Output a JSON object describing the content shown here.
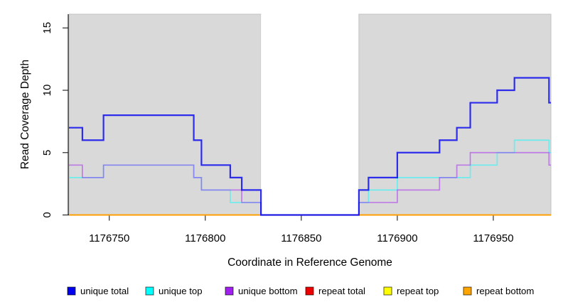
{
  "figure": {
    "background_color": "#ffffff",
    "covered_region_color": "#d9d9d9",
    "gap_region_color": "#ffffff"
  },
  "chart_data": {
    "type": "line",
    "style": "step-after",
    "title": "",
    "xlabel": "Coordinate in Reference Genome",
    "ylabel": "Read Coverage Depth",
    "xlim": [
      1176729,
      1176980
    ],
    "ylim": [
      0,
      16.1
    ],
    "xticks": [
      1176750,
      1176800,
      1176850,
      1176900,
      1176950
    ],
    "yticks": [
      0,
      5,
      10,
      15
    ],
    "grid": false,
    "legend_position": "bottom",
    "shaded_regions": [
      {
        "name": "covered-left",
        "from": 1176729,
        "to": 1176829,
        "color": "#d9d9d9"
      },
      {
        "name": "uncovered-gap",
        "from": 1176829,
        "to": 1176880,
        "color": "#ffffff"
      },
      {
        "name": "covered-right",
        "from": 1176880,
        "to": 1176980,
        "color": "#d9d9d9"
      }
    ],
    "series": [
      {
        "name": "repeat total",
        "color": "#EE0000",
        "line_rgba": "rgba(238,0,0,0.5)",
        "width": 1.4,
        "steps": [
          [
            1176729,
            0
          ]
        ]
      },
      {
        "name": "repeat top",
        "color": "#FFFF00",
        "line_rgba": "rgba(255,255,0,0.5)",
        "width": 1.4,
        "steps": [
          [
            1176729,
            0
          ]
        ]
      },
      {
        "name": "repeat bottom",
        "color": "#FFA500",
        "line_rgba": "rgba(255,158,0,1)",
        "width": 2,
        "steps": [
          [
            1176729,
            0
          ]
        ]
      },
      {
        "name": "unique top",
        "color": "#00FFFF",
        "line_rgba": "rgba(0,255,255,0.5)",
        "width": 1.7,
        "steps": [
          [
            1176729,
            3
          ],
          [
            1176747,
            4
          ],
          [
            1176794,
            3
          ],
          [
            1176798,
            2
          ],
          [
            1176813,
            1
          ],
          [
            1176829,
            0
          ],
          [
            1176880,
            1
          ],
          [
            1176885,
            2
          ],
          [
            1176900,
            3
          ],
          [
            1176938,
            4
          ],
          [
            1176952,
            5
          ],
          [
            1176961,
            6
          ],
          [
            1176979,
            5
          ]
        ]
      },
      {
        "name": "unique bottom",
        "color": "#A020F0",
        "line_rgba": "rgba(160,32,240,0.5)",
        "width": 1.7,
        "steps": [
          [
            1176729,
            4
          ],
          [
            1176736,
            3
          ],
          [
            1176747,
            4
          ],
          [
            1176794,
            3
          ],
          [
            1176798,
            2
          ],
          [
            1176819,
            1
          ],
          [
            1176829,
            0
          ],
          [
            1176880,
            1
          ],
          [
            1176900,
            2
          ],
          [
            1176922,
            3
          ],
          [
            1176931,
            4
          ],
          [
            1176938,
            5
          ],
          [
            1176979,
            4
          ]
        ]
      },
      {
        "name": "unique total",
        "color": "#0000EE",
        "line_rgba": "rgba(0,0,238,0.8)",
        "width": 2.2,
        "steps": [
          [
            1176729,
            7
          ],
          [
            1176736,
            6
          ],
          [
            1176747,
            8
          ],
          [
            1176794,
            6
          ],
          [
            1176798,
            4
          ],
          [
            1176813,
            3
          ],
          [
            1176819,
            2
          ],
          [
            1176829,
            0
          ],
          [
            1176880,
            2
          ],
          [
            1176885,
            3
          ],
          [
            1176900,
            5
          ],
          [
            1176922,
            6
          ],
          [
            1176931,
            7
          ],
          [
            1176938,
            9
          ],
          [
            1176952,
            10
          ],
          [
            1176961,
            11
          ],
          [
            1176979,
            9
          ]
        ]
      }
    ],
    "legend": [
      {
        "label": "unique total",
        "color": "#0000EE"
      },
      {
        "label": "unique top",
        "color": "#00FFFF"
      },
      {
        "label": "unique bottom",
        "color": "#A020F0"
      },
      {
        "label": "repeat total",
        "color": "#EE0000"
      },
      {
        "label": "repeat top",
        "color": "#FFFF00"
      },
      {
        "label": "repeat bottom",
        "color": "#FFA500"
      }
    ]
  }
}
